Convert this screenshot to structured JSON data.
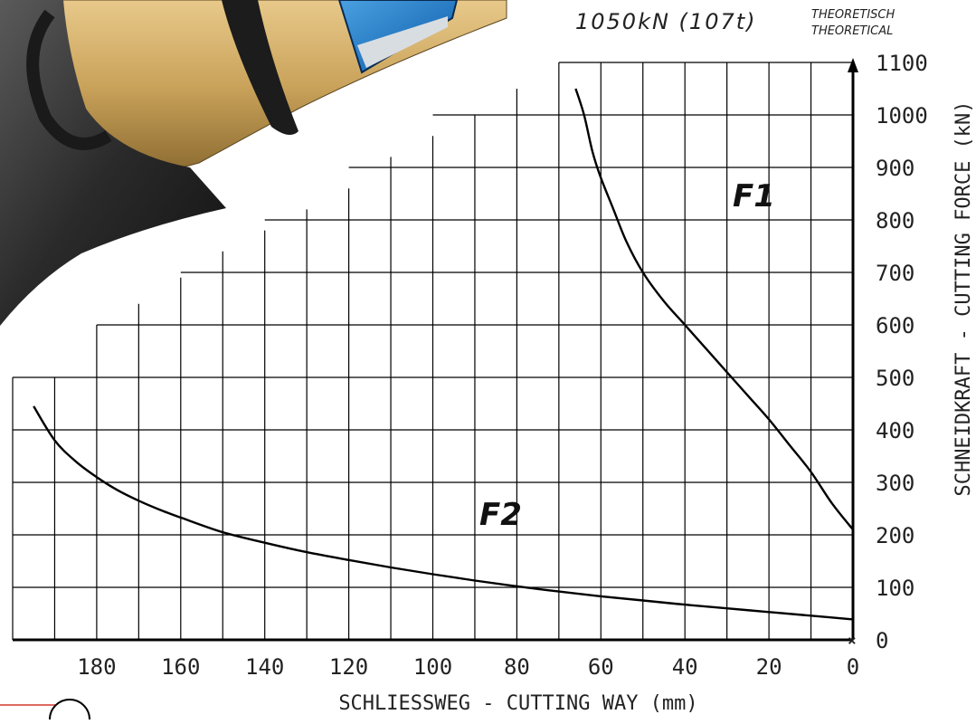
{
  "header": {
    "rating": "1050kN (107t)",
    "note_de": "THEORETISCH",
    "note_en": "THEORETICAL"
  },
  "chart_data": {
    "type": "line",
    "title": "",
    "xlabel": "SCHLIESSWEG - CUTTING WAY (mm)",
    "ylabel": "SCHNEIDKRAFT - CUTTING FORCE (kN)",
    "xlim": [
      200,
      0
    ],
    "ylim": [
      0,
      1100
    ],
    "x_ticks": [
      180,
      160,
      140,
      120,
      100,
      80,
      60,
      40,
      20,
      0
    ],
    "y_ticks": [
      0,
      100,
      200,
      300,
      400,
      500,
      600,
      700,
      800,
      900,
      1000,
      1100
    ],
    "grid": true,
    "series": [
      {
        "name": "F1",
        "x": [
          66,
          64,
          62,
          60,
          57,
          54,
          50,
          45,
          40,
          35,
          30,
          25,
          20,
          15,
          10,
          5,
          0
        ],
        "y": [
          1050,
          1000,
          930,
          880,
          820,
          760,
          700,
          645,
          600,
          555,
          510,
          465,
          420,
          370,
          320,
          260,
          210
        ]
      },
      {
        "name": "F2",
        "x": [
          195,
          190,
          185,
          180,
          175,
          170,
          165,
          160,
          150,
          140,
          130,
          120,
          110,
          100,
          90,
          80,
          70,
          60,
          50,
          40,
          30,
          20,
          10,
          0
        ],
        "y": [
          445,
          380,
          340,
          310,
          285,
          265,
          248,
          233,
          205,
          185,
          167,
          152,
          138,
          125,
          113,
          102,
          92,
          83,
          75,
          67,
          60,
          53,
          46,
          39
        ]
      }
    ]
  }
}
